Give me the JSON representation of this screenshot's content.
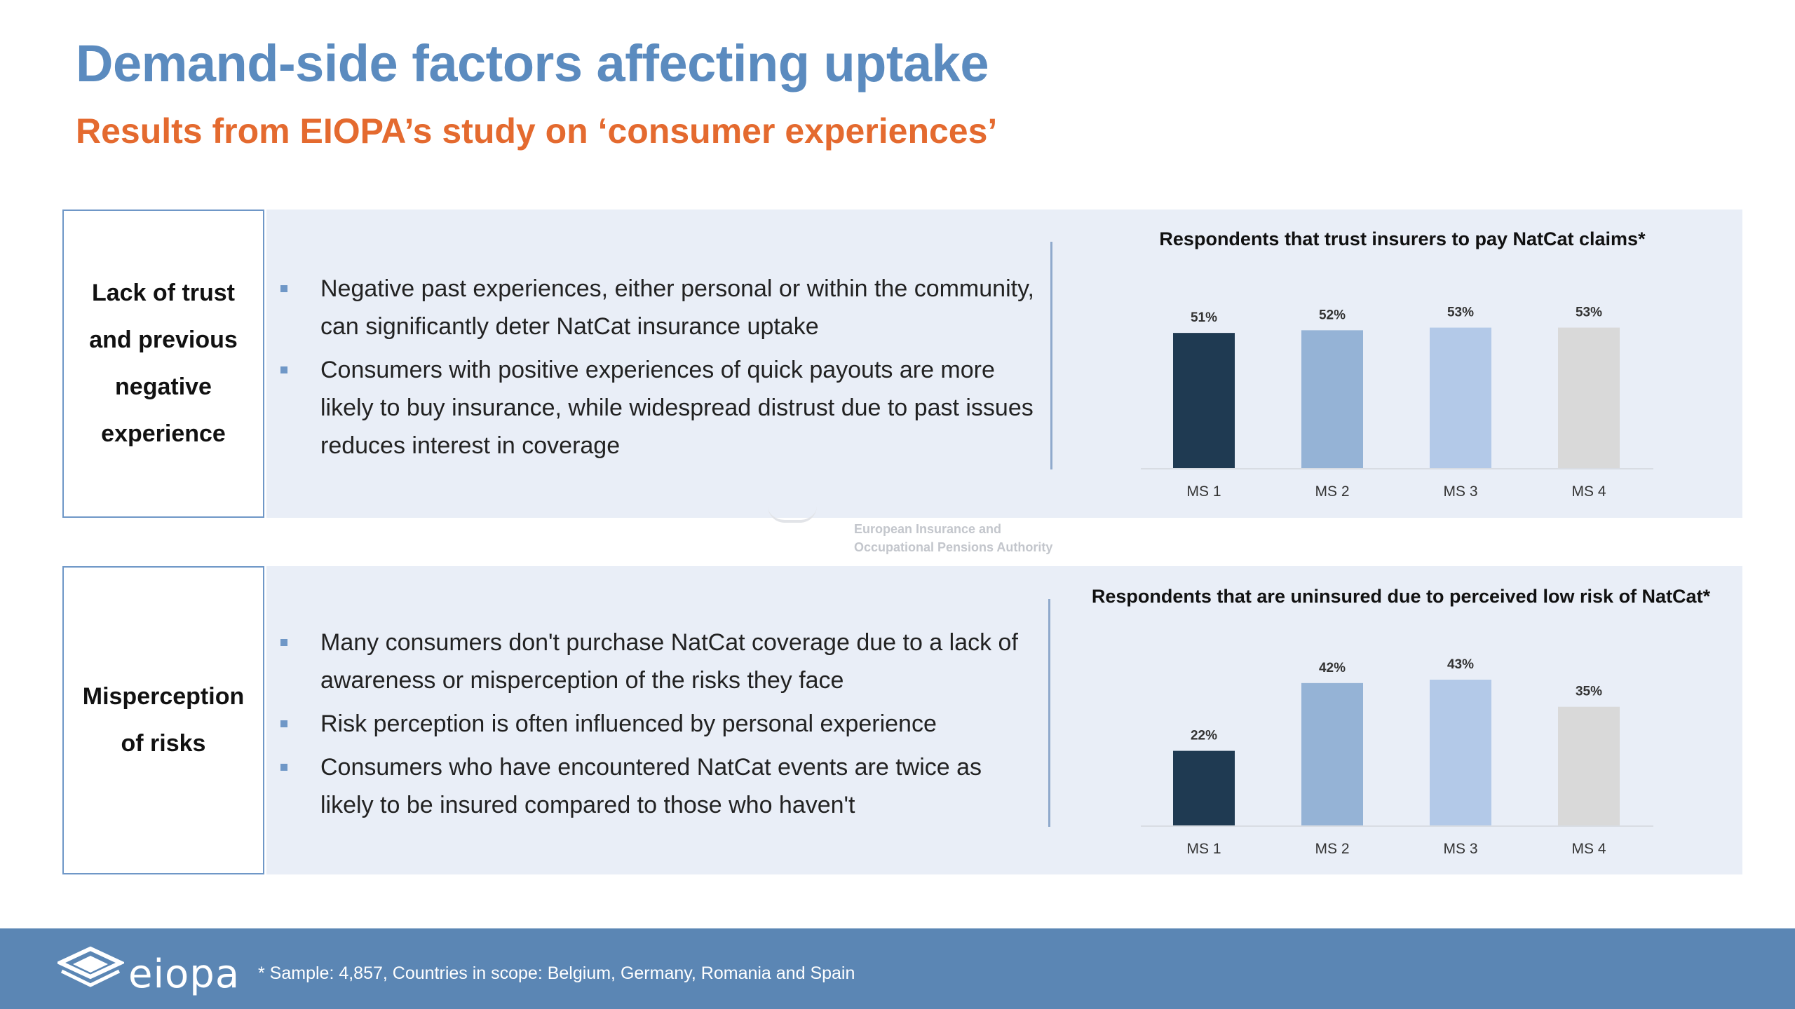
{
  "title": "Demand-side factors affecting uptake",
  "subtitle": "Results from EIOPA’s study on ‘consumer experiences’",
  "colors": {
    "title": "#5b8bbf",
    "subtitle": "#e46a2f",
    "panel": "#e9eef7",
    "footer": "#5b86b4",
    "bars": [
      "#1f3a52",
      "#95b3d6",
      "#b3c9e8",
      "#d9d9d9"
    ]
  },
  "sections": [
    {
      "label": "Lack of trust\nand previous\nnegative\nexperience",
      "bullets": [
        "Negative past experiences, either personal or within the community, can significantly deter NatCat insurance uptake",
        "Consumers with positive experiences of quick payouts are more likely to buy insurance, while widespread distrust due to past issues reduces interest in coverage"
      ]
    },
    {
      "label": "Misperception\nof risks",
      "bullets": [
        "Many consumers don't purchase NatCat coverage due to a lack of awareness or misperception of the risks they face",
        "Risk perception is often influenced by personal experience",
        "Consumers who have encountered NatCat events are twice as likely to be insured compared to those who haven't"
      ]
    }
  ],
  "watermark": {
    "line1": "European Insurance and",
    "line2": "Occupational Pensions Authority"
  },
  "footer": {
    "logo_text": "eiopa",
    "note": "* Sample: 4,857, Countries in scope: Belgium, Germany, Romania and Spain"
  },
  "chart_data": [
    {
      "type": "bar",
      "title": "Respondents that trust insurers to pay NatCat claims*",
      "categories": [
        "MS 1",
        "MS 2",
        "MS 3",
        "MS 4"
      ],
      "values": [
        51,
        52,
        53,
        53
      ],
      "value_labels": [
        "51%",
        "52%",
        "53%",
        "53%"
      ],
      "unit": "%",
      "ylim": [
        0,
        55
      ],
      "grid": false,
      "legend": "none"
    },
    {
      "type": "bar",
      "title": "Respondents that are uninsured due to perceived low risk of NatCat*",
      "categories": [
        "MS 1",
        "MS 2",
        "MS 3",
        "MS 4"
      ],
      "values": [
        22,
        42,
        43,
        35
      ],
      "value_labels": [
        "22%",
        "42%",
        "43%",
        "35%"
      ],
      "unit": "%",
      "ylim": [
        0,
        43
      ],
      "grid": false,
      "legend": "none"
    }
  ]
}
